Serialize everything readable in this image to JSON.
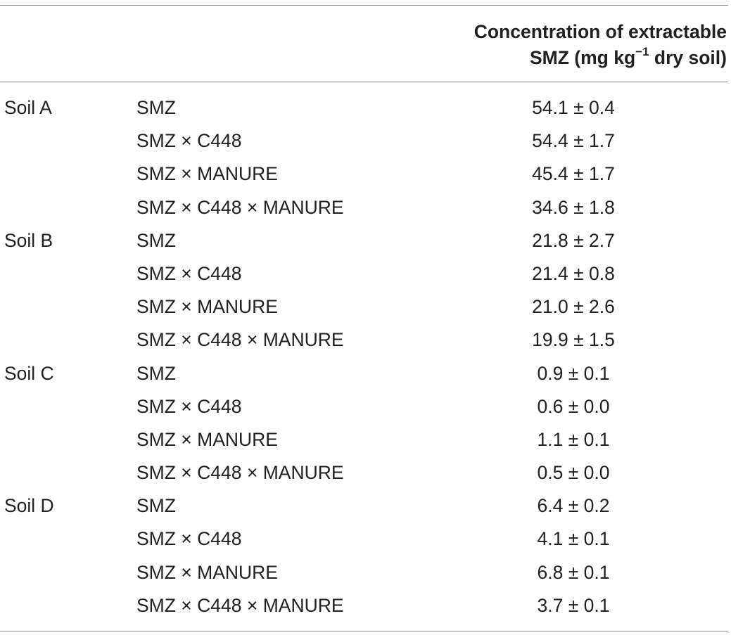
{
  "table": {
    "header": {
      "line1": "Concentration of extractable",
      "line2_pre": "SMZ (mg kg",
      "line2_sup": "−1",
      "line2_post": " dry soil)"
    },
    "rows": [
      {
        "soil": "Soil A",
        "treatment": "SMZ",
        "value": "54.1 ± 0.4"
      },
      {
        "soil": "",
        "treatment": "SMZ × C448",
        "value": "54.4 ± 1.7"
      },
      {
        "soil": "",
        "treatment": "SMZ × MANURE",
        "value": "45.4 ± 1.7"
      },
      {
        "soil": "",
        "treatment": "SMZ × C448 × MANURE",
        "value": "34.6 ± 1.8"
      },
      {
        "soil": "Soil B",
        "treatment": "SMZ",
        "value": "21.8 ± 2.7"
      },
      {
        "soil": "",
        "treatment": "SMZ × C448",
        "value": "21.4 ± 0.8"
      },
      {
        "soil": "",
        "treatment": "SMZ × MANURE",
        "value": "21.0 ± 2.6"
      },
      {
        "soil": "",
        "treatment": "SMZ × C448 × MANURE",
        "value": "19.9 ± 1.5"
      },
      {
        "soil": "Soil C",
        "treatment": "SMZ",
        "value": "0.9 ± 0.1"
      },
      {
        "soil": "",
        "treatment": "SMZ × C448",
        "value": "0.6 ± 0.0"
      },
      {
        "soil": "",
        "treatment": "SMZ × MANURE",
        "value": "1.1 ± 0.1"
      },
      {
        "soil": "",
        "treatment": "SMZ × C448 × MANURE",
        "value": "0.5 ± 0.0"
      },
      {
        "soil": "Soil D",
        "treatment": "SMZ",
        "value": "6.4 ± 0.2"
      },
      {
        "soil": "",
        "treatment": "SMZ × C448",
        "value": "4.1 ± 0.1"
      },
      {
        "soil": "",
        "treatment": "SMZ × MANURE",
        "value": "6.8 ± 0.1"
      },
      {
        "soil": "",
        "treatment": "SMZ × C448 × MANURE",
        "value": "3.7 ± 0.1"
      }
    ]
  }
}
